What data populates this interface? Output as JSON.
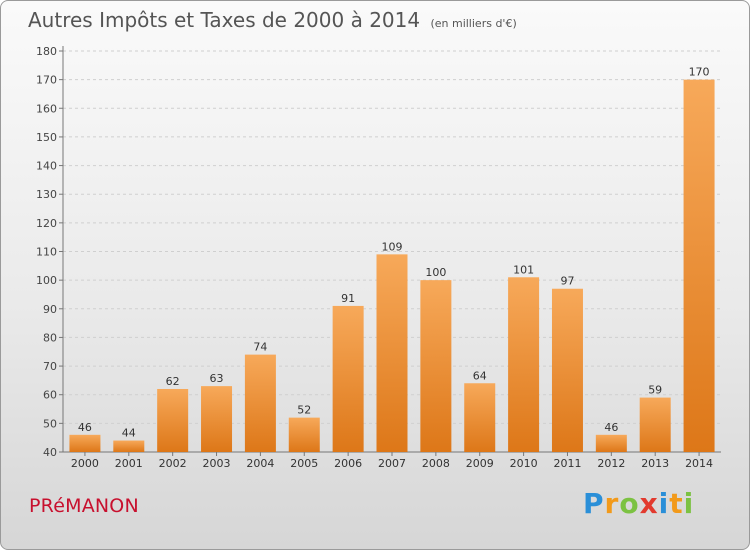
{
  "title": "Autres Impôts et Taxes de 2000 à 2014",
  "subtitle": "(en milliers d'€)",
  "town": "PRéMANON",
  "logo": {
    "letters": [
      "P",
      "r",
      "o",
      "x",
      "i",
      "t",
      "i"
    ],
    "colors": [
      "#2a8fd8",
      "#f29a1a",
      "#7cc242",
      "#e23a2e",
      "#2a8fd8",
      "#f29a1a",
      "#7cc242"
    ]
  },
  "colors": {
    "bar_top": "#f7a95a",
    "bar_bottom": "#dd7718",
    "accent_town": "#c8102e"
  },
  "chart_data": {
    "type": "bar",
    "categories": [
      "2000",
      "2001",
      "2002",
      "2003",
      "2004",
      "2005",
      "2006",
      "2007",
      "2008",
      "2009",
      "2010",
      "2011",
      "2012",
      "2013",
      "2014"
    ],
    "values": [
      46,
      44,
      62,
      63,
      74,
      52,
      91,
      109,
      100,
      64,
      101,
      97,
      46,
      59,
      170
    ],
    "ylim": [
      40,
      180
    ],
    "yticks": [
      40,
      50,
      60,
      70,
      80,
      90,
      100,
      110,
      120,
      130,
      140,
      150,
      160,
      170,
      180
    ],
    "grid": true,
    "data_labels": true
  }
}
